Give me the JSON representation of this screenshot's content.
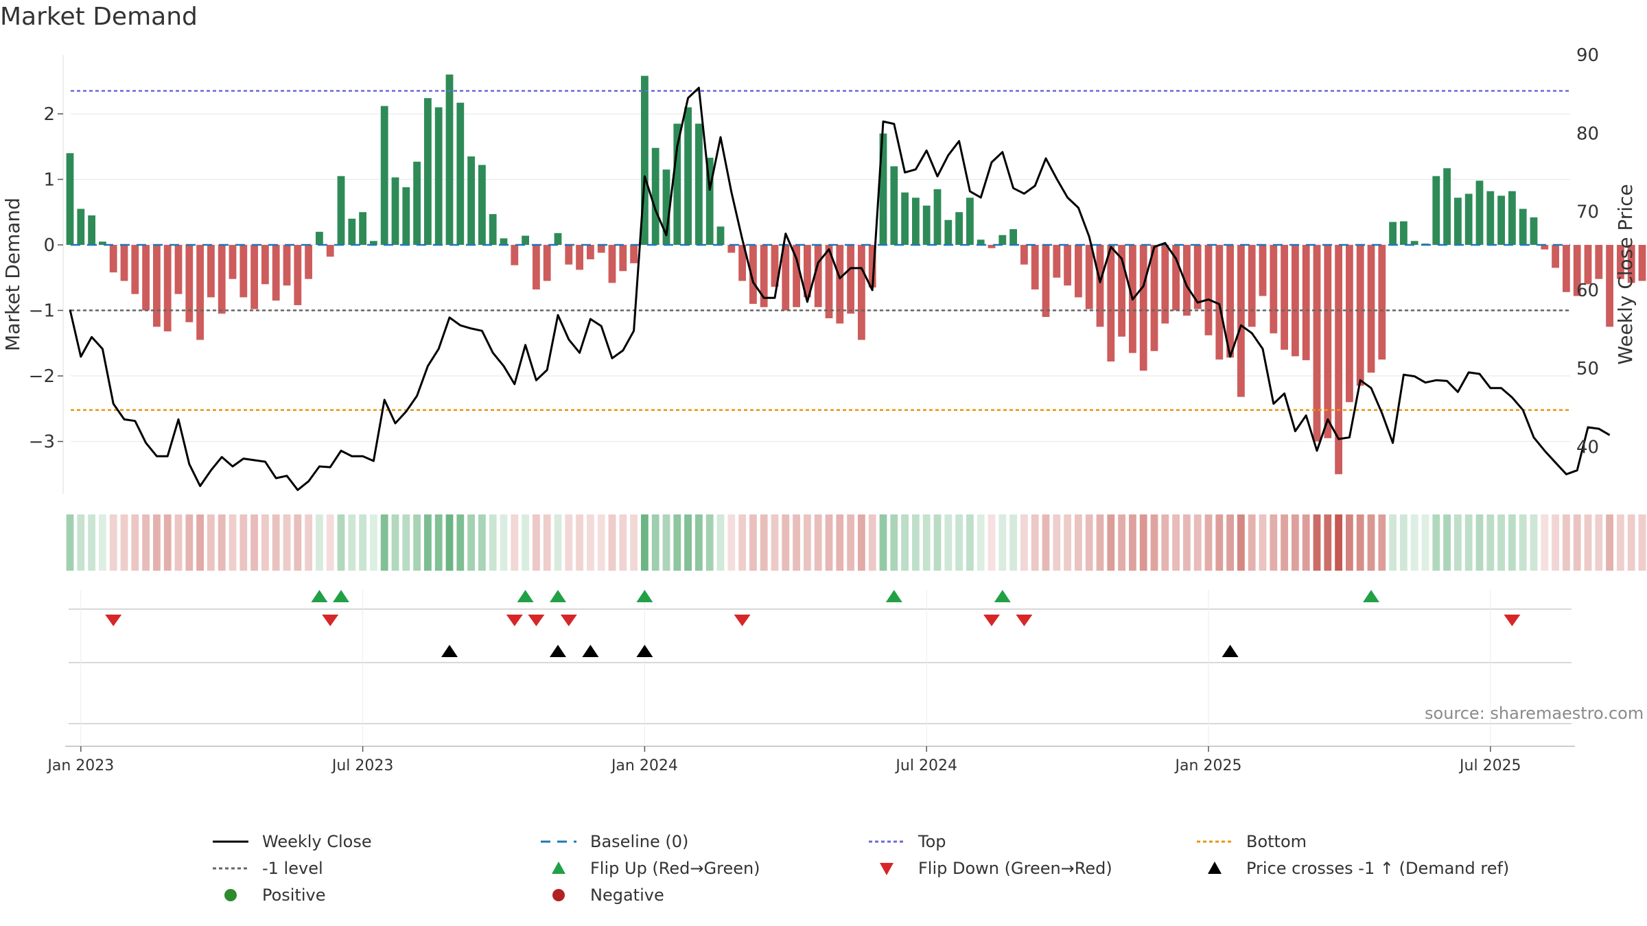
{
  "title": "Market Demand",
  "source": "source: sharemaestro.com",
  "colors": {
    "positive": "#2e8b57",
    "negative": "#cd5c5c",
    "line": "#000000",
    "top": "#6a6ad8",
    "bottom": "#e8960f",
    "minus1": "#666666",
    "baseline": "#1f77b4",
    "flip_up": "#22a045",
    "flip_down": "#d62728",
    "cross": "#000000",
    "legend_positive": "#2e8b2e",
    "legend_negative": "#b22222"
  },
  "chart_data": {
    "type": "bar",
    "title": "Market Demand",
    "ylabel": "Market Demand",
    "y2label": "Weekly Close Price",
    "ylim": [
      -3.8,
      2.9
    ],
    "y2lim": [
      34,
      90
    ],
    "y_ticks": [
      2,
      1,
      0,
      -1,
      -2,
      -3
    ],
    "y_tick_labels": [
      "2",
      "1",
      "0",
      "−1",
      "−2",
      "−3"
    ],
    "y2_ticks": [
      90,
      80,
      70,
      60,
      50,
      40
    ],
    "y2_tick_labels": [
      "90",
      "80",
      "70",
      "60",
      "50",
      "40"
    ],
    "x_ticks": [
      "Jan 2023",
      "Jul 2023",
      "Jan 2024",
      "Jul 2024",
      "Jan 2025",
      "Jul 2025"
    ],
    "x_tick_week_index": [
      1,
      27,
      53,
      79,
      105,
      131
    ],
    "top_level": 2.35,
    "bottom_level": -2.52,
    "minus1_level": -1,
    "baseline": 0,
    "demand": [
      1.4,
      0.55,
      0.45,
      0.05,
      -0.42,
      -0.55,
      -0.75,
      -1.0,
      -1.25,
      -1.32,
      -0.75,
      -1.18,
      -1.45,
      -0.8,
      -1.05,
      -0.52,
      -0.8,
      -0.98,
      -0.6,
      -0.85,
      -0.62,
      -0.92,
      -0.52,
      0.2,
      -0.18,
      1.05,
      0.4,
      0.5,
      0.06,
      2.12,
      1.03,
      0.88,
      1.27,
      2.24,
      2.1,
      2.6,
      2.17,
      1.35,
      1.22,
      0.47,
      0.1,
      -0.31,
      0.14,
      -0.68,
      -0.55,
      0.18,
      -0.3,
      -0.38,
      -0.22,
      -0.12,
      -0.58,
      -0.4,
      -0.28,
      2.58,
      1.48,
      1.15,
      1.85,
      2.1,
      1.85,
      1.33,
      0.28,
      -0.12,
      -0.55,
      -0.9,
      -0.95,
      -0.64,
      -1.0,
      -0.95,
      -0.8,
      -0.95,
      -1.12,
      -1.2,
      -1.05,
      -1.45,
      -0.65,
      1.7,
      1.2,
      0.8,
      0.72,
      0.6,
      0.85,
      0.38,
      0.5,
      0.72,
      0.08,
      -0.05,
      0.15,
      0.24,
      -0.3,
      -0.68,
      -1.1,
      -0.5,
      -0.62,
      -0.8,
      -0.98,
      -1.25,
      -1.78,
      -1.4,
      -1.65,
      -1.92,
      -1.62,
      -1.2,
      -1.0,
      -1.08,
      -0.98,
      -1.38,
      -1.75,
      -1.72,
      -2.32,
      -1.25,
      -0.78,
      -1.35,
      -1.6,
      -1.7,
      -1.76,
      -3.0,
      -2.95,
      -3.5,
      -2.4,
      -2.15,
      -1.95,
      -1.75,
      0.35,
      0.36,
      0.06,
      0.02,
      1.05,
      1.17,
      0.72,
      0.78,
      0.98,
      0.82,
      0.75,
      0.82,
      0.55,
      0.42,
      -0.07,
      -0.35,
      -0.72,
      -0.78,
      -0.6,
      -0.52,
      -1.25,
      -0.52,
      -0.58,
      -0.55
    ],
    "weekly_close": [
      57.5,
      51.5,
      54,
      52.5,
      45.5,
      43.5,
      43.3,
      40.5,
      38.8,
      38.8,
      43.5,
      37.8,
      35,
      37,
      38.7,
      37.5,
      38.5,
      38.3,
      38.1,
      36,
      36.3,
      34.5,
      35.6,
      37.5,
      37.4,
      39.5,
      38.8,
      38.8,
      38.2,
      46,
      43,
      44.5,
      46.5,
      50.3,
      52.5,
      56.5,
      55.5,
      55.1,
      54.8,
      52,
      50.3,
      48,
      53,
      48.5,
      49.8,
      56.8,
      53.7,
      52,
      56.3,
      55.4,
      51.3,
      52.3,
      54.8,
      74.5,
      70.2,
      67,
      78.3,
      84.5,
      85.8,
      72.8,
      79.5,
      72.5,
      66.5,
      61,
      59,
      59,
      67.2,
      64,
      58.5,
      63.5,
      65.2,
      61.5,
      62.8,
      62.8,
      60,
      81.5,
      81.2,
      75,
      75.4,
      77.8,
      74.5,
      77.2,
      79,
      72.6,
      71.8,
      76.3,
      77.6,
      73,
      72.3,
      73.3,
      76.8,
      74.2,
      71.8,
      70.5,
      66.8,
      61,
      65.5,
      64,
      58.8,
      60.5,
      65.5,
      66,
      64,
      60.5,
      58.4,
      58.8,
      58.2,
      51.5,
      55.5,
      54.5,
      52.5,
      45.5,
      46.8,
      42,
      44,
      39.5,
      43.5,
      41,
      41.2,
      48.5,
      47.5,
      44.3,
      40.5,
      49.2,
      49,
      48.2,
      48.5,
      48.4,
      47,
      49.5,
      49.3,
      47.5,
      47.5,
      46.3,
      44.7,
      41.2,
      39.5,
      38,
      36.5,
      37,
      42.5,
      42.3,
      41.5
    ],
    "flip_up_weeks": [
      23,
      25,
      42,
      45,
      53,
      76,
      86,
      120
    ],
    "flip_down_weeks": [
      4,
      24,
      41,
      43,
      46,
      62,
      85,
      88,
      133
    ],
    "cross_up_weeks": [
      35,
      45,
      48,
      53,
      107
    ]
  },
  "legend": [
    {
      "key": "line",
      "label": "Weekly Close"
    },
    {
      "key": "baseline",
      "label": "Baseline (0)"
    },
    {
      "key": "top",
      "label": "Top"
    },
    {
      "key": "bottom",
      "label": "Bottom"
    },
    {
      "key": "minus1",
      "label": "-1 level"
    },
    {
      "key": "flip_up",
      "label": "Flip Up (Red→Green)"
    },
    {
      "key": "flip_down",
      "label": "Flip Down (Green→Red)"
    },
    {
      "key": "cross",
      "label": "Price crosses -1 ↑ (Demand ref)"
    },
    {
      "key": "positive",
      "label": "Positive"
    },
    {
      "key": "negative",
      "label": "Negative"
    }
  ]
}
